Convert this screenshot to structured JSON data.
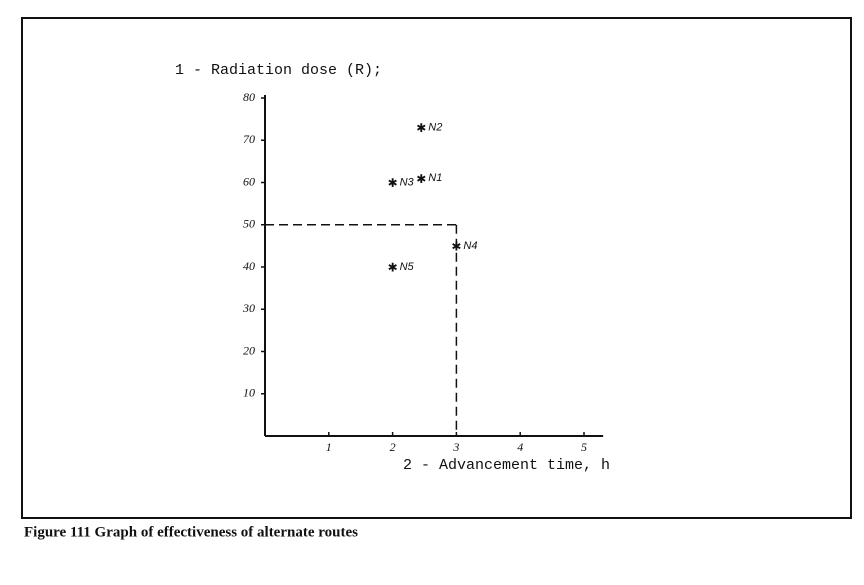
{
  "chart_data": {
    "type": "scatter",
    "y_label": "1 - Radiation dose (R);",
    "x_label": "2 - Advancement time, h",
    "caption": "Figure 111 Graph of effectiveness of alternate routes",
    "x": [
      2.45,
      2.45,
      2.0,
      3.0,
      2.0
    ],
    "values": [
      73,
      61,
      60,
      45,
      40
    ],
    "labels": [
      "N2",
      "N1",
      "N3",
      "N4",
      "N5"
    ],
    "reference": {
      "x": 3,
      "y": 50
    },
    "xlim": [
      0,
      5.3
    ],
    "ylim": [
      0,
      80
    ],
    "xticks": [
      1,
      2,
      3,
      4,
      5
    ],
    "yticks": [
      10,
      20,
      30,
      40,
      50,
      60,
      70,
      80
    ],
    "color": "#111111"
  }
}
